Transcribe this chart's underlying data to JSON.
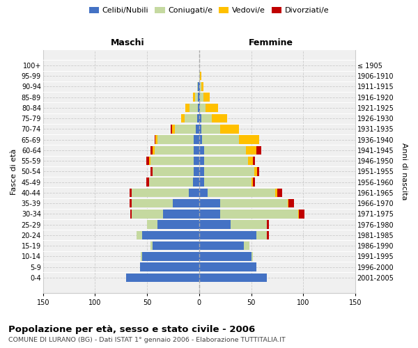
{
  "age_groups": [
    "0-4",
    "5-9",
    "10-14",
    "15-19",
    "20-24",
    "25-29",
    "30-34",
    "35-39",
    "40-44",
    "45-49",
    "50-54",
    "55-59",
    "60-64",
    "65-69",
    "70-74",
    "75-79",
    "80-84",
    "85-89",
    "90-94",
    "95-99",
    "100+"
  ],
  "birth_years": [
    "2001-2005",
    "1996-2000",
    "1991-1995",
    "1986-1990",
    "1981-1985",
    "1976-1980",
    "1971-1975",
    "1966-1970",
    "1961-1965",
    "1956-1960",
    "1951-1955",
    "1946-1950",
    "1941-1945",
    "1936-1940",
    "1931-1935",
    "1926-1930",
    "1921-1925",
    "1916-1920",
    "1911-1915",
    "1906-1910",
    "≤ 1905"
  ],
  "male_celibi": [
    70,
    57,
    55,
    45,
    55,
    40,
    35,
    25,
    10,
    6,
    5,
    5,
    5,
    5,
    3,
    2,
    1,
    1,
    1,
    0,
    0
  ],
  "male_coniugati": [
    0,
    0,
    1,
    2,
    5,
    10,
    30,
    40,
    55,
    42,
    40,
    42,
    38,
    35,
    20,
    12,
    8,
    3,
    1,
    0,
    0
  ],
  "male_vedovi": [
    0,
    0,
    0,
    0,
    0,
    0,
    0,
    0,
    0,
    0,
    0,
    1,
    2,
    2,
    3,
    3,
    4,
    2,
    0,
    0,
    0
  ],
  "male_divorziati": [
    0,
    0,
    0,
    0,
    0,
    0,
    1,
    2,
    2,
    3,
    2,
    3,
    2,
    1,
    1,
    0,
    0,
    0,
    0,
    0,
    0
  ],
  "female_nubili": [
    65,
    55,
    50,
    43,
    55,
    30,
    20,
    20,
    8,
    5,
    5,
    5,
    5,
    3,
    2,
    2,
    1,
    1,
    1,
    0,
    0
  ],
  "female_coniugate": [
    0,
    0,
    2,
    5,
    10,
    35,
    75,
    65,
    65,
    45,
    48,
    42,
    40,
    35,
    18,
    10,
    5,
    3,
    1,
    1,
    0
  ],
  "female_vedove": [
    0,
    0,
    0,
    0,
    0,
    0,
    1,
    1,
    2,
    2,
    3,
    5,
    10,
    20,
    18,
    15,
    12,
    6,
    2,
    1,
    0
  ],
  "female_divorziate": [
    0,
    0,
    0,
    0,
    2,
    2,
    5,
    5,
    5,
    2,
    2,
    2,
    5,
    0,
    0,
    0,
    0,
    0,
    0,
    0,
    0
  ],
  "colors": {
    "celibi": "#4472c4",
    "coniugati": "#c5d9a0",
    "vedovi": "#ffc000",
    "divorziati": "#c00000"
  },
  "title": "Popolazione per età, sesso e stato civile - 2006",
  "subtitle": "COMUNE DI LURANO (BG) - Dati ISTAT 1° gennaio 2006 - Elaborazione TUTTITALIA.IT",
  "xlim": 150,
  "ylabel_left": "Fasce di età",
  "ylabel_right": "Anni di nascita",
  "xlabel_left": "Maschi",
  "xlabel_right": "Femmine",
  "legend_labels": [
    "Celibi/Nubili",
    "Coniugati/e",
    "Vedovi/e",
    "Divorziati/e"
  ],
  "background_color": "#ffffff",
  "plot_bg": "#f0f0f0",
  "grid_color": "#cccccc",
  "bar_height": 0.82
}
